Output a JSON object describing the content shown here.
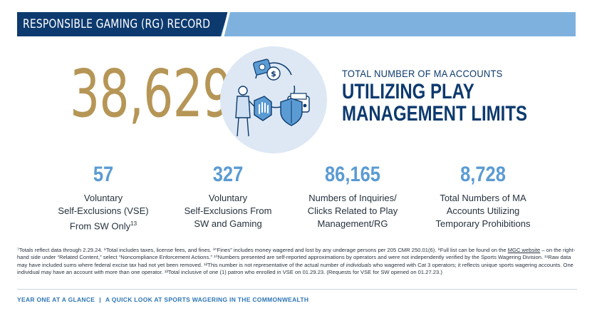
{
  "banner": {
    "title": "RESPONSIBLE GAMING (RG) RECORD"
  },
  "hero": {
    "value": "38,629",
    "subtitle": "TOTAL NUMBER OF MA ACCOUNTS",
    "title_line1": "UTILIZING PLAY",
    "title_line2": "MANAGEMENT LIMITS"
  },
  "icons": [
    "chip-icon",
    "dollar-coin-icon",
    "person-icon",
    "stop-hand-icon",
    "shield-icon",
    "wallet-icon"
  ],
  "colors": {
    "navy": "#0d3a6e",
    "light_blue": "#7fb1de",
    "gold": "#b69656",
    "stat_blue": "#5b9bd3",
    "circle_bg": "#dde8f4"
  },
  "stats": [
    {
      "value": "57",
      "line1": "Voluntary",
      "line2": "Self-Exclusions (VSE)",
      "line3": "From SW Only",
      "sup": "13"
    },
    {
      "value": "327",
      "line1": "Voluntary",
      "line2": "Self-Exclusions From",
      "line3": "SW and Gaming",
      "sup": ""
    },
    {
      "value": "86,165",
      "line1": "Numbers of Inquiries/",
      "line2": "Clicks Related to Play",
      "line3": "Management/RG",
      "sup": ""
    },
    {
      "value": "8,728",
      "line1": "Total Numbers of MA",
      "line2": "Accounts Utilizing",
      "line3": "Temporary Prohibitions",
      "sup": ""
    }
  ],
  "footnotes": {
    "part1": "⁷Totals reflect data through 2.29.24. ⁸Total includes taxes, license fees, and fines. ⁹“Fines” includes money wagered and lost by any underage persons per 205 CMR 250.01(6). ⁹Full list can be found on the ",
    "link": "MGC website",
    "part2": " – on the right-hand side under “Related Content,” select “Noncompliance Enforcement Actions.” ¹⁰Numbers presented are self-reported approximations by operators and were not independently verified by the Sports Wagering Division. ¹¹Raw data may have included sums where federal excise tax had not yet been removed. ¹²This number is not representative of the actual number of ",
    "italic": "individuals",
    "part3": " who wagered with Cat 3 operators; it reflects unique sports wagering accounts. One individual may have an account with more than one operator. ¹³Total inclusive of one (1) patron who enrolled in VSE on 01.29.23. (Requests for VSE for SW opened on 01.27.23.)"
  },
  "footer": {
    "left": "YEAR ONE AT A GLANCE",
    "separator": "|",
    "right": "A QUICK LOOK AT SPORTS WAGERING IN THE COMMONWEALTH"
  }
}
